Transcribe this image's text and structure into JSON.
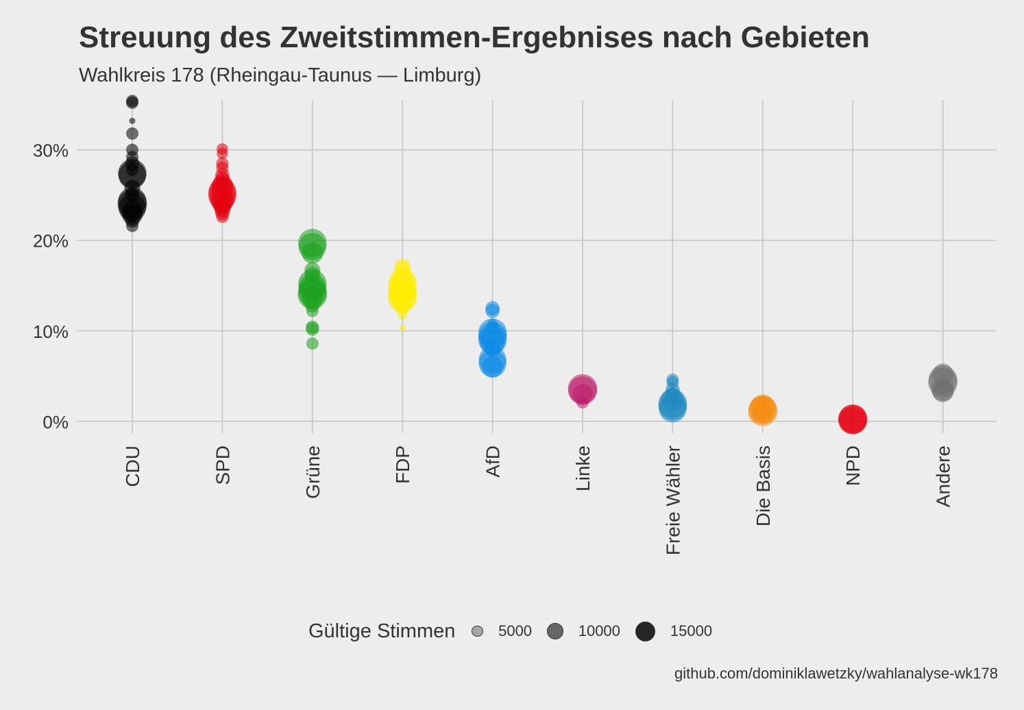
{
  "chart_data": {
    "type": "scatter",
    "title": "Streuung des Zweitstimmen-Ergebnises nach Gebieten",
    "subtitle": "Wahlkreis 178 (Rheingau-Taunus — Limburg)",
    "caption": "github.com/dominiklawetzky/wahlanalyse-wk178",
    "xlabel": "",
    "ylabel": "",
    "ylim": [
      -0.013,
      0.355
    ],
    "yticks": [
      {
        "value": 0.0,
        "label": "0%"
      },
      {
        "value": 0.1,
        "label": "10%"
      },
      {
        "value": 0.2,
        "label": "20%"
      },
      {
        "value": 0.3,
        "label": "30%"
      }
    ],
    "grid": true,
    "legend_placement": "bottom",
    "legend": {
      "title": "Gültige Stimmen",
      "keys": [
        {
          "value": 5000,
          "label": "5000"
        },
        {
          "value": 10000,
          "label": "10000"
        },
        {
          "value": 15000,
          "label": "15000"
        }
      ]
    },
    "categories": [
      "CDU",
      "SPD",
      "Grüne",
      "FDP",
      "AfD",
      "Linke",
      "Freie Wähler",
      "Die Basis",
      "NPD",
      "Andere"
    ],
    "series": [
      {
        "name": "CDU",
        "color": "#000000",
        "points": [
          {
            "y": 0.354,
            "size": 3000
          },
          {
            "y": 0.352,
            "size": 3000
          },
          {
            "y": 0.332,
            "size": 800
          },
          {
            "y": 0.318,
            "size": 3000
          },
          {
            "y": 0.3,
            "size": 3000
          },
          {
            "y": 0.292,
            "size": 3000
          },
          {
            "y": 0.285,
            "size": 4000
          },
          {
            "y": 0.278,
            "size": 3000
          },
          {
            "y": 0.274,
            "size": 16000
          },
          {
            "y": 0.272,
            "size": 15000
          },
          {
            "y": 0.258,
            "size": 5000
          },
          {
            "y": 0.25,
            "size": 4000
          },
          {
            "y": 0.243,
            "size": 16000
          },
          {
            "y": 0.24,
            "size": 17000
          },
          {
            "y": 0.236,
            "size": 15000
          },
          {
            "y": 0.232,
            "size": 9000
          },
          {
            "y": 0.228,
            "size": 8000
          },
          {
            "y": 0.222,
            "size": 4000
          },
          {
            "y": 0.216,
            "size": 3000
          }
        ]
      },
      {
        "name": "SPD",
        "color": "#e3000f",
        "points": [
          {
            "y": 0.301,
            "size": 2500
          },
          {
            "y": 0.296,
            "size": 2500
          },
          {
            "y": 0.285,
            "size": 3000
          },
          {
            "y": 0.28,
            "size": 3000
          },
          {
            "y": 0.272,
            "size": 4000
          },
          {
            "y": 0.268,
            "size": 4000
          },
          {
            "y": 0.262,
            "size": 8000
          },
          {
            "y": 0.258,
            "size": 10000
          },
          {
            "y": 0.254,
            "size": 15000
          },
          {
            "y": 0.25,
            "size": 16000
          },
          {
            "y": 0.246,
            "size": 12000
          },
          {
            "y": 0.242,
            "size": 9000
          },
          {
            "y": 0.238,
            "size": 6000
          },
          {
            "y": 0.234,
            "size": 5000
          },
          {
            "y": 0.23,
            "size": 4000
          },
          {
            "y": 0.226,
            "size": 3000
          }
        ]
      },
      {
        "name": "Grüne",
        "color": "#1aa01c",
        "points": [
          {
            "y": 0.197,
            "size": 16000
          },
          {
            "y": 0.193,
            "size": 15000
          },
          {
            "y": 0.186,
            "size": 9000
          },
          {
            "y": 0.167,
            "size": 5000
          },
          {
            "y": 0.162,
            "size": 5000
          },
          {
            "y": 0.152,
            "size": 16000
          },
          {
            "y": 0.148,
            "size": 15000
          },
          {
            "y": 0.143,
            "size": 16000
          },
          {
            "y": 0.14,
            "size": 17000
          },
          {
            "y": 0.136,
            "size": 9000
          },
          {
            "y": 0.128,
            "size": 4000
          },
          {
            "y": 0.122,
            "size": 3000
          },
          {
            "y": 0.104,
            "size": 3500
          },
          {
            "y": 0.102,
            "size": 3500
          },
          {
            "y": 0.086,
            "size": 3000
          }
        ]
      },
      {
        "name": "FDP",
        "color": "#ffed00",
        "points": [
          {
            "y": 0.171,
            "size": 5000
          },
          {
            "y": 0.168,
            "size": 5000
          },
          {
            "y": 0.158,
            "size": 8000
          },
          {
            "y": 0.154,
            "size": 15000
          },
          {
            "y": 0.15,
            "size": 16000
          },
          {
            "y": 0.143,
            "size": 15000
          },
          {
            "y": 0.14,
            "size": 17000
          },
          {
            "y": 0.136,
            "size": 16000
          },
          {
            "y": 0.132,
            "size": 8000
          },
          {
            "y": 0.126,
            "size": 4000
          },
          {
            "y": 0.118,
            "size": 2000
          },
          {
            "y": 0.103,
            "size": 800
          }
        ]
      },
      {
        "name": "AfD",
        "color": "#0c8be5",
        "points": [
          {
            "y": 0.125,
            "size": 4000
          },
          {
            "y": 0.122,
            "size": 4000
          },
          {
            "y": 0.108,
            "size": 2000
          },
          {
            "y": 0.103,
            "size": 4000
          },
          {
            "y": 0.098,
            "size": 16000
          },
          {
            "y": 0.094,
            "size": 16000
          },
          {
            "y": 0.09,
            "size": 16000
          },
          {
            "y": 0.087,
            "size": 12000
          },
          {
            "y": 0.08,
            "size": 5000
          },
          {
            "y": 0.068,
            "size": 15000
          },
          {
            "y": 0.064,
            "size": 15000
          },
          {
            "y": 0.06,
            "size": 9000
          }
        ]
      },
      {
        "name": "Linke",
        "color": "#be1c6a",
        "points": [
          {
            "y": 0.036,
            "size": 17000
          },
          {
            "y": 0.034,
            "size": 16000
          },
          {
            "y": 0.03,
            "size": 8000
          },
          {
            "y": 0.021,
            "size": 3000
          }
        ]
      },
      {
        "name": "Freie Wähler",
        "color": "#1e88c0",
        "points": [
          {
            "y": 0.046,
            "size": 3000
          },
          {
            "y": 0.043,
            "size": 3000
          },
          {
            "y": 0.035,
            "size": 4000
          },
          {
            "y": 0.029,
            "size": 5000
          },
          {
            "y": 0.024,
            "size": 10000
          },
          {
            "y": 0.02,
            "size": 16000
          },
          {
            "y": 0.017,
            "size": 16000
          },
          {
            "y": 0.014,
            "size": 15000
          }
        ]
      },
      {
        "name": "Die Basis",
        "color": "#f58a0c",
        "points": [
          {
            "y": 0.021,
            "size": 3000
          },
          {
            "y": 0.016,
            "size": 12000
          },
          {
            "y": 0.013,
            "size": 16000
          },
          {
            "y": 0.011,
            "size": 17000
          },
          {
            "y": 0.009,
            "size": 8000
          }
        ]
      },
      {
        "name": "NPD",
        "color": "#e3000f",
        "points": [
          {
            "y": 0.003,
            "size": 16000
          },
          {
            "y": 0.002,
            "size": 17000
          },
          {
            "y": 0.001,
            "size": 15000
          }
        ]
      },
      {
        "name": "Andere",
        "color": "#6e6e6e",
        "points": [
          {
            "y": 0.052,
            "size": 9000
          },
          {
            "y": 0.046,
            "size": 16000
          },
          {
            "y": 0.043,
            "size": 17000
          },
          {
            "y": 0.035,
            "size": 10000
          },
          {
            "y": 0.033,
            "size": 9000
          }
        ]
      }
    ]
  }
}
